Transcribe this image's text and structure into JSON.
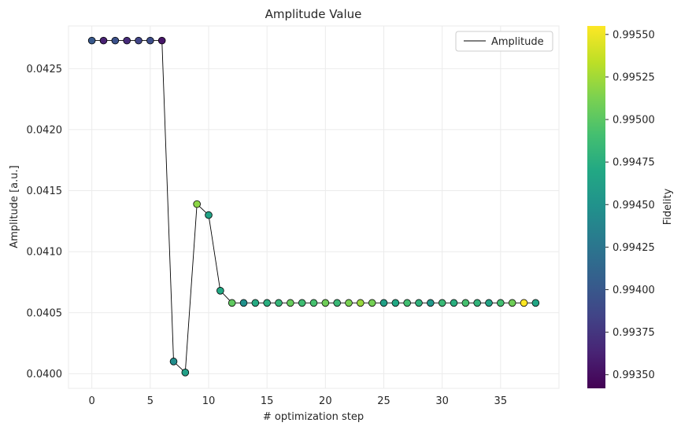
{
  "chart_data": {
    "type": "line",
    "title": "Amplitude Value",
    "xlabel": "# optimization step",
    "ylabel": "Amplitude [a.u.]",
    "xlim": [
      -2.0,
      40.0
    ],
    "ylim": [
      0.03988,
      0.04285
    ],
    "xticks": [
      0,
      5,
      10,
      15,
      20,
      25,
      30,
      35
    ],
    "yticks": [
      0.04,
      0.0405,
      0.041,
      0.0415,
      0.042,
      0.0425
    ],
    "ytick_labels": [
      "0.0400",
      "0.0405",
      "0.0410",
      "0.0415",
      "0.0420",
      "0.0425"
    ],
    "grid": true,
    "legend": {
      "position": "top-right",
      "entries": [
        "Amplitude"
      ]
    },
    "series": [
      {
        "name": "Amplitude",
        "line_color": "#000000",
        "x": [
          0,
          1,
          2,
          3,
          4,
          5,
          6,
          7,
          8,
          9,
          10,
          11,
          12,
          13,
          14,
          15,
          16,
          17,
          18,
          19,
          20,
          21,
          22,
          23,
          24,
          25,
          26,
          27,
          28,
          29,
          30,
          31,
          32,
          33,
          34,
          35,
          36,
          37,
          38
        ],
        "values": [
          0.04273,
          0.04273,
          0.04273,
          0.04273,
          0.04273,
          0.04273,
          0.04273,
          0.0401,
          0.04001,
          0.04139,
          0.0413,
          0.04068,
          0.04058,
          0.04058,
          0.04058,
          0.04058,
          0.04058,
          0.04058,
          0.04058,
          0.04058,
          0.04058,
          0.04058,
          0.04058,
          0.04058,
          0.04058,
          0.04058,
          0.04058,
          0.04058,
          0.04058,
          0.04058,
          0.04058,
          0.04058,
          0.04058,
          0.04058,
          0.04058,
          0.04058,
          0.04058,
          0.04058,
          0.04058
        ],
        "fidelity": [
          0.994,
          0.99362,
          0.99395,
          0.99368,
          0.99385,
          0.99392,
          0.99355,
          0.99445,
          0.99462,
          0.99518,
          0.99465,
          0.9947,
          0.99502,
          0.99448,
          0.99472,
          0.99475,
          0.99482,
          0.99505,
          0.99488,
          0.99492,
          0.99508,
          0.99485,
          0.99512,
          0.99522,
          0.9951,
          0.99462,
          0.9947,
          0.9949,
          0.99478,
          0.99455,
          0.99485,
          0.99475,
          0.99492,
          0.9948,
          0.99465,
          0.9949,
          0.99508,
          0.99555,
          0.99468
        ]
      }
    ],
    "colorbar": {
      "label": "Fidelity",
      "colormap": "viridis",
      "range": [
        0.99342,
        0.99555
      ],
      "ticks": [
        0.9935,
        0.99375,
        0.994,
        0.99425,
        0.9945,
        0.99475,
        0.995,
        0.99525,
        0.9955
      ],
      "tick_labels": [
        "0.99350",
        "0.99375",
        "0.99400",
        "0.99425",
        "0.99450",
        "0.99475",
        "0.99500",
        "0.99525",
        "0.99550"
      ]
    }
  }
}
